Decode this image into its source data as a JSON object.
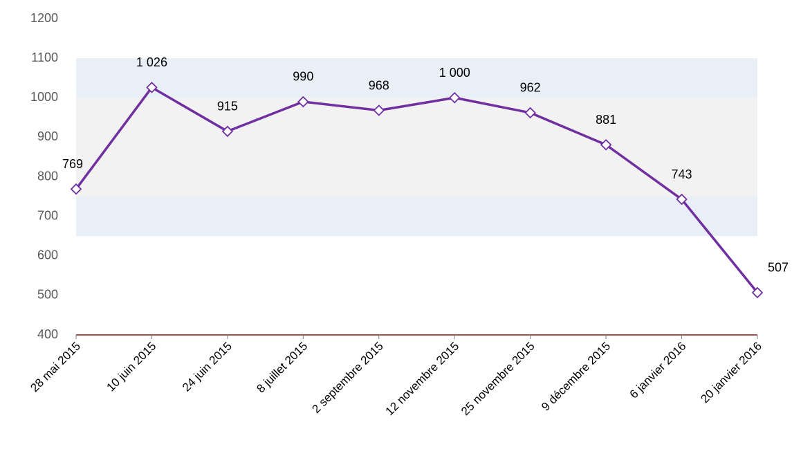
{
  "chart_data": {
    "type": "line",
    "categories": [
      "28 mai 2015",
      "10 juin 2015",
      "24 juin 2015",
      "8 juillet 2015",
      "2 septembre 2015",
      "12 novembre 2015",
      "25 novembre 2015",
      "9 décembre 2015",
      "6 janvier 2016",
      "20 janvier 2016"
    ],
    "values": [
      769,
      1026,
      915,
      990,
      968,
      1000,
      962,
      881,
      743,
      507
    ],
    "value_labels": [
      "769",
      "1 026",
      "915",
      "990",
      "968",
      "1 000",
      "962",
      "881",
      "743",
      "507"
    ],
    "color": "#7030a0",
    "ylim": [
      400,
      1200
    ],
    "yticks": [
      400,
      500,
      600,
      700,
      800,
      900,
      1000,
      1100,
      1200
    ],
    "bands": [
      {
        "from": 650,
        "to": 1100,
        "color": "#e9eff7"
      },
      {
        "from": 750,
        "to": 1000,
        "color": "#f2f2f2"
      }
    ],
    "axis_color": "#a0504f"
  }
}
